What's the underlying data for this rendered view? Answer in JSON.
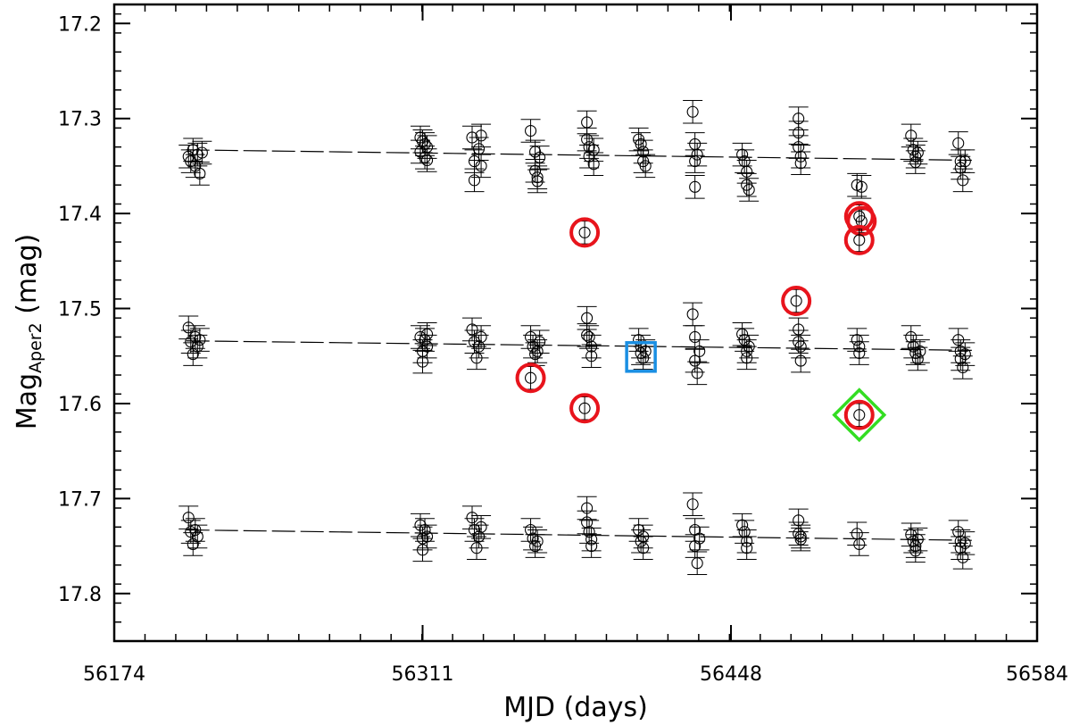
{
  "chart_data": {
    "type": "scatter",
    "title": "",
    "xlabel": "MJD (days)",
    "ylabel_main": "Mag",
    "ylabel_sub": "Aper2",
    "ylabel_unit": " (mag)",
    "xlim": [
      56174,
      56584
    ],
    "ylim": [
      17.85,
      17.18
    ],
    "x_ticks": [
      56174,
      56311,
      56448,
      56584
    ],
    "y_ticks": [
      17.2,
      17.3,
      17.4,
      17.5,
      17.6,
      17.7,
      17.8
    ],
    "y_tick_labels": [
      "17.2",
      "17.3",
      "17.4",
      "17.5",
      "17.6",
      "17.7",
      "17.8"
    ],
    "x_tick_labels": [
      "56174",
      "56311",
      "56448",
      "56584"
    ],
    "error_bar": 0.012,
    "colors": {
      "points": "#000000",
      "outlier_circle": "#e8141c",
      "square_marker": "#1a8fe3",
      "diamond_marker": "#33dd22"
    },
    "series": [
      {
        "name": "top",
        "trend": [
          [
            56206,
            17.333
          ],
          [
            56555,
            17.344
          ]
        ],
        "points": [
          [
            56207,
            17.34
          ],
          [
            56208,
            17.345
          ],
          [
            56209,
            17.333
          ],
          [
            56210,
            17.35
          ],
          [
            56211,
            17.338
          ],
          [
            56212,
            17.358
          ],
          [
            56213,
            17.336
          ],
          [
            56310,
            17.32
          ],
          [
            56310,
            17.335
          ],
          [
            56311,
            17.324
          ],
          [
            56312,
            17.327
          ],
          [
            56312,
            17.341
          ],
          [
            56313,
            17.344
          ],
          [
            56313,
            17.33
          ],
          [
            56333,
            17.32
          ],
          [
            56334,
            17.345
          ],
          [
            56334,
            17.365
          ],
          [
            56336,
            17.332
          ],
          [
            56337,
            17.35
          ],
          [
            56337,
            17.318
          ],
          [
            56359,
            17.313
          ],
          [
            56361,
            17.335
          ],
          [
            56361,
            17.355
          ],
          [
            56362,
            17.362
          ],
          [
            56362,
            17.366
          ],
          [
            56363,
            17.341
          ],
          [
            56384,
            17.304
          ],
          [
            56384,
            17.322
          ],
          [
            56385,
            17.33
          ],
          [
            56385,
            17.34
          ],
          [
            56387,
            17.348
          ],
          [
            56387,
            17.333
          ],
          [
            56407,
            17.322
          ],
          [
            56408,
            17.327
          ],
          [
            56409,
            17.335
          ],
          [
            56409,
            17.345
          ],
          [
            56410,
            17.35
          ],
          [
            56431,
            17.293
          ],
          [
            56432,
            17.327
          ],
          [
            56432,
            17.345
          ],
          [
            56432,
            17.372
          ],
          [
            56433,
            17.338
          ],
          [
            56453,
            17.338
          ],
          [
            56454,
            17.345
          ],
          [
            56455,
            17.356
          ],
          [
            56455,
            17.37
          ],
          [
            56456,
            17.375
          ],
          [
            56478,
            17.3
          ],
          [
            56478,
            17.315
          ],
          [
            56478,
            17.33
          ],
          [
            56479,
            17.34
          ],
          [
            56479,
            17.347
          ],
          [
            56504,
            17.37
          ],
          [
            56506,
            17.372
          ],
          [
            56528,
            17.318
          ],
          [
            56529,
            17.333
          ],
          [
            56530,
            17.34
          ],
          [
            56530,
            17.346
          ],
          [
            56531,
            17.336
          ],
          [
            56549,
            17.326
          ],
          [
            56550,
            17.345
          ],
          [
            56550,
            17.352
          ],
          [
            56551,
            17.365
          ],
          [
            56552,
            17.345
          ]
        ]
      },
      {
        "name": "middle",
        "trend": [
          [
            56206,
            17.534
          ],
          [
            56555,
            17.544
          ]
        ],
        "points": [
          [
            56207,
            17.52
          ],
          [
            56208,
            17.535
          ],
          [
            56209,
            17.548
          ],
          [
            56210,
            17.53
          ],
          [
            56211,
            17.54
          ],
          [
            56212,
            17.533
          ],
          [
            56310,
            17.53
          ],
          [
            56311,
            17.545
          ],
          [
            56311,
            17.556
          ],
          [
            56312,
            17.533
          ],
          [
            56313,
            17.54
          ],
          [
            56313,
            17.527
          ],
          [
            56333,
            17.522
          ],
          [
            56334,
            17.535
          ],
          [
            56335,
            17.552
          ],
          [
            56336,
            17.54
          ],
          [
            56337,
            17.53
          ],
          [
            56359,
            17.53
          ],
          [
            56360,
            17.54
          ],
          [
            56361,
            17.548
          ],
          [
            56362,
            17.545
          ],
          [
            56363,
            17.535
          ],
          [
            56384,
            17.51
          ],
          [
            56384,
            17.528
          ],
          [
            56385,
            17.53
          ],
          [
            56386,
            17.54
          ],
          [
            56386,
            17.55
          ],
          [
            56407,
            17.533
          ],
          [
            56408,
            17.54
          ],
          [
            56408,
            17.547
          ],
          [
            56409,
            17.552
          ],
          [
            56410,
            17.545
          ],
          [
            56431,
            17.506
          ],
          [
            56432,
            17.53
          ],
          [
            56432,
            17.555
          ],
          [
            56433,
            17.568
          ],
          [
            56434,
            17.545
          ],
          [
            56453,
            17.527
          ],
          [
            56454,
            17.533
          ],
          [
            56455,
            17.545
          ],
          [
            56455,
            17.552
          ],
          [
            56456,
            17.54
          ],
          [
            56478,
            17.522
          ],
          [
            56478,
            17.535
          ],
          [
            56479,
            17.54
          ],
          [
            56479,
            17.555
          ],
          [
            56504,
            17.533
          ],
          [
            56505,
            17.547
          ],
          [
            56505,
            17.54
          ],
          [
            56528,
            17.53
          ],
          [
            56529,
            17.54
          ],
          [
            56530,
            17.547
          ],
          [
            56531,
            17.553
          ],
          [
            56532,
            17.545
          ],
          [
            56549,
            17.533
          ],
          [
            56550,
            17.545
          ],
          [
            56550,
            17.553
          ],
          [
            56551,
            17.562
          ],
          [
            56552,
            17.548
          ]
        ]
      },
      {
        "name": "bottom",
        "trend": [
          [
            56206,
            17.733
          ],
          [
            56555,
            17.744
          ]
        ],
        "points": [
          [
            56207,
            17.72
          ],
          [
            56208,
            17.735
          ],
          [
            56209,
            17.748
          ],
          [
            56210,
            17.733
          ],
          [
            56211,
            17.74
          ],
          [
            56310,
            17.728
          ],
          [
            56311,
            17.742
          ],
          [
            56311,
            17.754
          ],
          [
            56312,
            17.733
          ],
          [
            56313,
            17.74
          ],
          [
            56333,
            17.72
          ],
          [
            56334,
            17.733
          ],
          [
            56335,
            17.752
          ],
          [
            56336,
            17.74
          ],
          [
            56337,
            17.73
          ],
          [
            56359,
            17.733
          ],
          [
            56360,
            17.742
          ],
          [
            56361,
            17.75
          ],
          [
            56362,
            17.745
          ],
          [
            56384,
            17.71
          ],
          [
            56384,
            17.725
          ],
          [
            56385,
            17.735
          ],
          [
            56386,
            17.743
          ],
          [
            56386,
            17.75
          ],
          [
            56407,
            17.733
          ],
          [
            56408,
            17.745
          ],
          [
            56409,
            17.752
          ],
          [
            56409,
            17.74
          ],
          [
            56431,
            17.706
          ],
          [
            56432,
            17.733
          ],
          [
            56432,
            17.75
          ],
          [
            56433,
            17.768
          ],
          [
            56434,
            17.742
          ],
          [
            56453,
            17.728
          ],
          [
            56454,
            17.735
          ],
          [
            56455,
            17.745
          ],
          [
            56455,
            17.752
          ],
          [
            56478,
            17.723
          ],
          [
            56478,
            17.737
          ],
          [
            56479,
            17.74
          ],
          [
            56479,
            17.743
          ],
          [
            56504,
            17.737
          ],
          [
            56505,
            17.748
          ],
          [
            56528,
            17.738
          ],
          [
            56529,
            17.745
          ],
          [
            56530,
            17.75
          ],
          [
            56530,
            17.755
          ],
          [
            56531,
            17.743
          ],
          [
            56549,
            17.735
          ],
          [
            56550,
            17.745
          ],
          [
            56550,
            17.752
          ],
          [
            56551,
            17.762
          ],
          [
            56552,
            17.747
          ]
        ]
      }
    ],
    "red_circles": [
      [
        56383,
        17.42
      ],
      [
        56505,
        17.403
      ],
      [
        56506,
        17.408
      ],
      [
        56505,
        17.428
      ],
      [
        56477,
        17.492
      ],
      [
        56359,
        17.573
      ],
      [
        56383,
        17.605
      ],
      [
        56505,
        17.612
      ]
    ],
    "blue_square": [
      56408,
      17.551
    ],
    "green_diamond": [
      56505,
      17.612
    ]
  }
}
